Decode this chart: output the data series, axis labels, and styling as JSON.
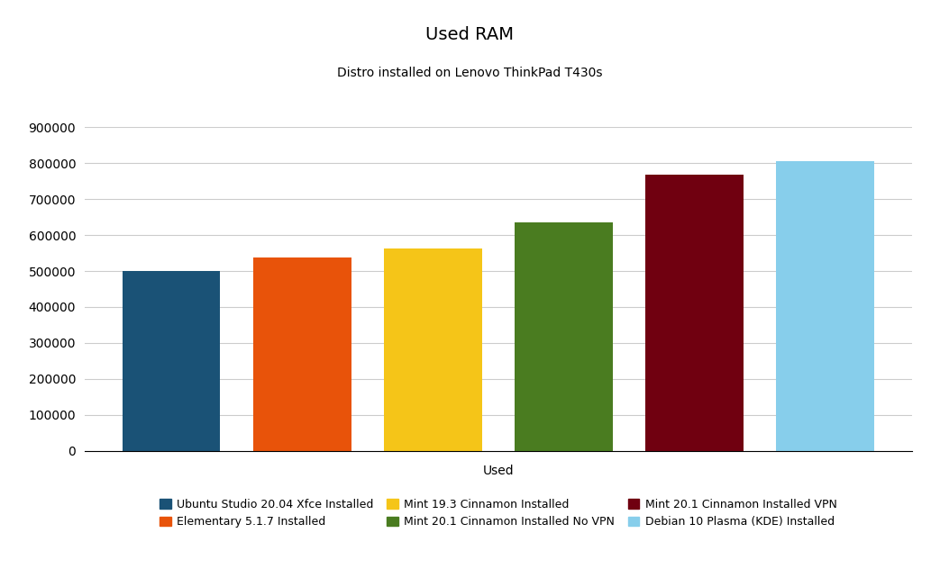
{
  "title": "Used RAM",
  "subtitle": "Distro installed on Lenovo ThinkPad T430s",
  "xlabel": "Used",
  "ylabel": "",
  "categories": [
    "Ubuntu Studio 20.04 Xfce Installed",
    "Elementary 5.1.7 Installed",
    "Mint 19.3 Cinnamon Installed",
    "Mint 20.1 Cinnamon Installed No VPN",
    "Mint 20.1 Cinnamon Installed VPN",
    "Debian 10 Plasma (KDE) Installed"
  ],
  "values": [
    499000,
    537000,
    563000,
    636000,
    768000,
    805000
  ],
  "bar_colors": [
    "#1a5276",
    "#e8530a",
    "#f5c518",
    "#4a7c20",
    "#700010",
    "#87ceeb"
  ],
  "ylim": [
    0,
    900000
  ],
  "yticks": [
    0,
    100000,
    200000,
    300000,
    400000,
    500000,
    600000,
    700000,
    800000,
    900000
  ],
  "background_color": "#ffffff",
  "grid_color": "#cccccc",
  "title_fontsize": 14,
  "subtitle_fontsize": 10,
  "tick_fontsize": 10,
  "xlabel_fontsize": 10,
  "legend_fontsize": 9
}
